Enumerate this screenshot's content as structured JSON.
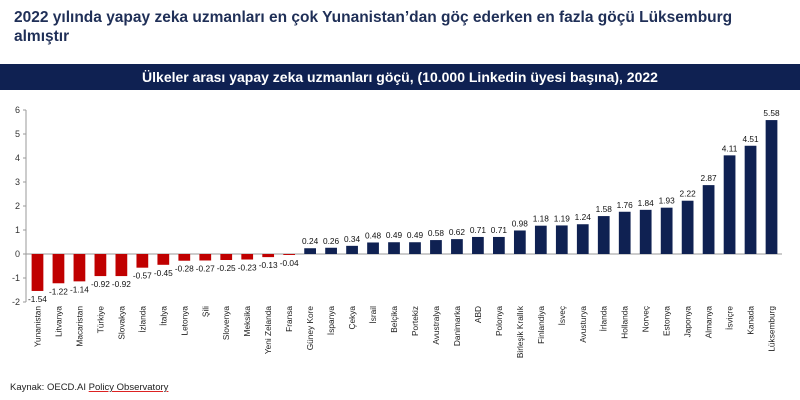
{
  "headline": "2022 yılında yapay zeka uzmanları en çok Yunanistan’dan göç ederken en fazla göçü Lüksemburg almıştır",
  "source": {
    "prefix": "Kaynak: OECD.AI ",
    "link": "Policy Observatory"
  },
  "colors": {
    "banner_bg": "#0f2152",
    "positive": "#0f2152",
    "negative": "#c00000"
  },
  "chart_data": {
    "type": "bar",
    "title": "Ülkeler arası yapay zeka uzmanları göçü, (10.000 Linkedin üyesi başına), 2022",
    "xlabel": "",
    "ylabel": "",
    "ylim": [
      -2,
      6
    ],
    "yticks": [
      -2,
      -1,
      0,
      1,
      2,
      3,
      4,
      5,
      6
    ],
    "grid": false,
    "categories": [
      "Yunanistan",
      "Litvanya",
      "Macaristan",
      "Türkiye",
      "Slovakya",
      "İzlanda",
      "İtalya",
      "Letonya",
      "Şili",
      "Slovenya",
      "Meksika",
      "Yeni Zelanda",
      "Fransa",
      "Güney Kore",
      "İspanya",
      "Çekya",
      "İsrail",
      "Belçika",
      "Portekiz",
      "Avustralya",
      "Danimarka",
      "ABD",
      "Polonya",
      "Birleşik Krallık",
      "Finlandiya",
      "İsveç",
      "Avusturya",
      "İrlanda",
      "Hollanda",
      "Norveç",
      "Estonya",
      "Japonya",
      "Almanya",
      "İsviçre",
      "Kanada",
      "Lüksemburg"
    ],
    "values": [
      -1.54,
      -1.22,
      -1.14,
      -0.92,
      -0.92,
      -0.57,
      -0.45,
      -0.28,
      -0.27,
      -0.25,
      -0.23,
      -0.13,
      -0.04,
      0.24,
      0.26,
      0.34,
      0.48,
      0.49,
      0.49,
      0.58,
      0.62,
      0.71,
      0.71,
      0.98,
      1.18,
      1.19,
      1.24,
      1.58,
      1.76,
      1.84,
      1.93,
      2.22,
      2.87,
      4.11,
      4.51,
      5.58
    ],
    "value_labels": [
      "-1.54",
      "-1.22",
      "-1.14",
      "-0.92",
      "-0.92",
      "-0.57",
      "-0.45",
      "-0.28",
      "-0.27",
      "-0.25",
      "-0.23",
      "-0.13",
      "-0.04",
      "0.24",
      "0.26",
      "0.34",
      "0.48",
      "0.49",
      "0.49",
      "0.58",
      "0.62",
      "0.71",
      "0.71",
      "0.98",
      "1.18",
      "1.19",
      "1.24",
      "1.58",
      "1.76",
      "1.84",
      "1.93",
      "2.22",
      "2.87",
      "4.11",
      "4.51",
      "5.58"
    ]
  }
}
